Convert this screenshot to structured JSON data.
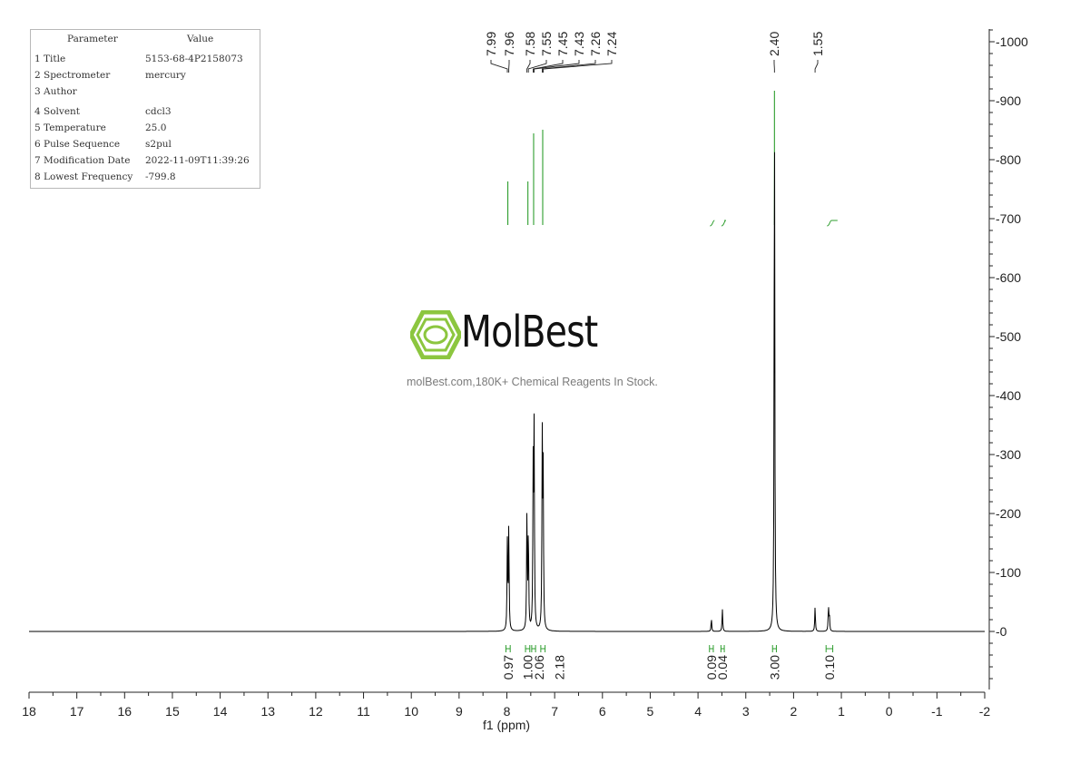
{
  "params": {
    "header": {
      "param": "Parameter",
      "value": "Value"
    },
    "rows": [
      {
        "key": "1 Title",
        "value": "5153-68-4P2158073"
      },
      {
        "key": "2 Spectrometer",
        "value": "mercury"
      },
      {
        "key": "3 Author",
        "value": ""
      },
      {
        "key": "4 Solvent",
        "value": "cdcl3"
      },
      {
        "key": "5 Temperature",
        "value": "25.0"
      },
      {
        "key": "6 Pulse Sequence",
        "value": "s2pul"
      },
      {
        "key": "7 Modification Date",
        "value": "2022-11-09T11:39:26"
      },
      {
        "key": "8 Lowest Frequency",
        "value": "-799.8"
      }
    ]
  },
  "watermark": {
    "brand": "MolBest",
    "tagline": "molBest.com,180K+ Chemical Reagents In Stock."
  },
  "colors": {
    "spectrum": "#000000",
    "annotation": "#2e9e2e",
    "logo": "#8cc63f"
  },
  "chart_data": {
    "type": "line",
    "xlabel": "f1 (ppm)",
    "xlim": [
      18,
      -2
    ],
    "ylim": [
      -100,
      1000
    ],
    "x_ticks": [
      18,
      17,
      16,
      15,
      14,
      13,
      12,
      11,
      10,
      9,
      8,
      7,
      6,
      5,
      4,
      3,
      2,
      1,
      0,
      -1,
      -2
    ],
    "y_ticks": [
      0,
      100,
      200,
      300,
      400,
      500,
      600,
      700,
      800,
      900,
      1000
    ],
    "peaks": [
      {
        "ppm": 7.99,
        "height": 150
      },
      {
        "ppm": 7.96,
        "height": 178
      },
      {
        "ppm": 7.58,
        "height": 202
      },
      {
        "ppm": 7.55,
        "height": 172
      },
      {
        "ppm": 7.45,
        "height": 265
      },
      {
        "ppm": 7.43,
        "height": 330
      },
      {
        "ppm": 7.26,
        "height": 318
      },
      {
        "ppm": 7.24,
        "height": 258
      },
      {
        "ppm": 3.72,
        "height": 22
      },
      {
        "ppm": 3.49,
        "height": 38
      },
      {
        "ppm": 2.4,
        "height": 930
      },
      {
        "ppm": 1.55,
        "height": 42
      },
      {
        "ppm": 1.27,
        "height": 42
      },
      {
        "ppm": 1.25,
        "height": 25
      }
    ],
    "peak_labels": [
      "7.99",
      "7.96",
      "7.58",
      "7.55",
      "7.45",
      "7.43",
      "7.26",
      "7.24",
      "2.40",
      "1.55"
    ],
    "integrals": [
      {
        "label": "0.97",
        "from": 8.02,
        "to": 7.93
      },
      {
        "label": "1.00",
        "from": 7.61,
        "to": 7.52
      },
      {
        "label": "2.06",
        "from": 7.48,
        "to": 7.4
      },
      {
        "label": "2.18",
        "from": 7.29,
        "to": 7.2
      },
      {
        "label": "0.09",
        "from": 3.76,
        "to": 3.68
      },
      {
        "label": "0.04",
        "from": 3.52,
        "to": 3.45
      },
      {
        "label": "3.00",
        "from": 2.44,
        "to": 2.36
      },
      {
        "label": "0.10",
        "from": 1.32,
        "to": 1.18
      }
    ]
  }
}
